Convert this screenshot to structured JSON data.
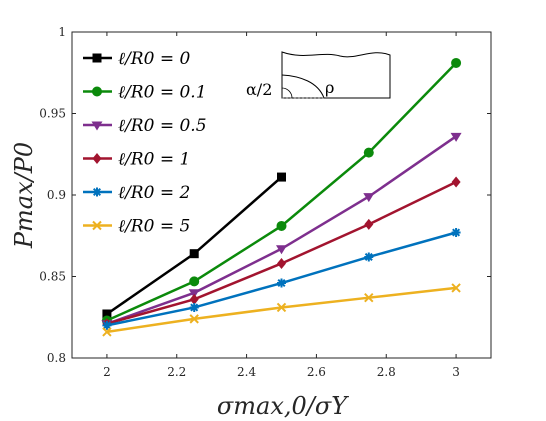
{
  "chart_data": {
    "type": "line",
    "xlabel": "σmax,0/σY",
    "ylabel": "Pmax/P0",
    "xlim": [
      1.9,
      3.1
    ],
    "ylim": [
      0.8,
      1.0
    ],
    "xticks": [
      "2",
      "2.2",
      "2.4",
      "2.6",
      "2.8",
      "3"
    ],
    "yticks": [
      "0.8",
      "0.85",
      "0.9",
      "0.95",
      "1"
    ],
    "grid": false,
    "legend_position": "top-left",
    "series": [
      {
        "name": "ℓ/R0 = 0",
        "color": "#000000",
        "marker": "square",
        "x": [
          2,
          2.25,
          2.5
        ],
        "y": [
          0.827,
          0.864,
          0.911
        ]
      },
      {
        "name": "ℓ/R0 = 0.1",
        "color": "#0b8a0b",
        "marker": "circle",
        "x": [
          2,
          2.25,
          2.5,
          2.75,
          3
        ],
        "y": [
          0.823,
          0.847,
          0.881,
          0.926,
          0.981
        ]
      },
      {
        "name": "ℓ/R0 = 0.5",
        "color": "#7e2f8e",
        "marker": "triangle",
        "x": [
          2,
          2.25,
          2.5,
          2.75,
          3
        ],
        "y": [
          0.821,
          0.84,
          0.867,
          0.899,
          0.936
        ]
      },
      {
        "name": "ℓ/R0 = 1",
        "color": "#a2142f",
        "marker": "diamond",
        "x": [
          2,
          2.25,
          2.5,
          2.75,
          3
        ],
        "y": [
          0.821,
          0.836,
          0.858,
          0.882,
          0.908
        ]
      },
      {
        "name": "ℓ/R0 = 2",
        "color": "#0072bd",
        "marker": "asterisk",
        "x": [
          2,
          2.25,
          2.5,
          2.75,
          3
        ],
        "y": [
          0.82,
          0.831,
          0.846,
          0.862,
          0.877
        ]
      },
      {
        "name": "ℓ/R0 = 5",
        "color": "#edb120",
        "marker": "x",
        "x": [
          2,
          2.25,
          2.5,
          2.75,
          3
        ],
        "y": [
          0.816,
          0.824,
          0.831,
          0.837,
          0.843
        ]
      }
    ],
    "inset": {
      "alpha_label": "α/2",
      "rho_label": "ρ"
    }
  }
}
